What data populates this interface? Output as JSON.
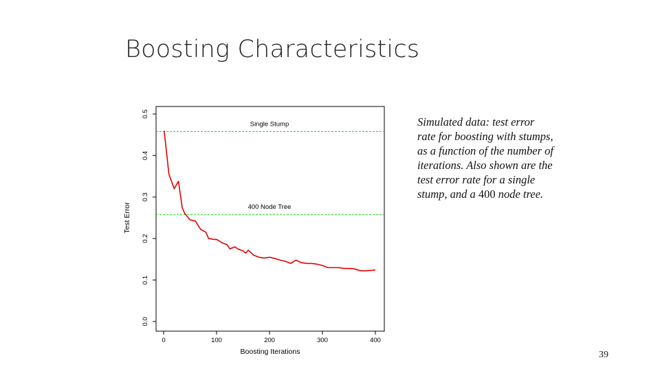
{
  "slide": {
    "title": "Boosting Characteristics",
    "page_number": "39"
  },
  "caption": {
    "part1": "Simulated data: test error rate for boosting with stumps,  as a function of the number of iterations. Also shown are the test error rate for a single stump, and a ",
    "number": "400",
    "part2": " node tree."
  },
  "chart_data": {
    "type": "line",
    "xlabel": "Boosting Iterations",
    "ylabel": "Test Error",
    "xlim": [
      0,
      400
    ],
    "ylim": [
      0.0,
      0.5
    ],
    "xticks": [
      "0",
      "100",
      "200",
      "300",
      "400"
    ],
    "yticks": [
      "0.0",
      "0.1",
      "0.2",
      "0.3",
      "0.4",
      "0.5"
    ],
    "grid": false,
    "series": [
      {
        "color": "#e00000",
        "x": [
          1,
          10,
          20,
          28,
          35,
          40,
          50,
          60,
          70,
          80,
          85,
          95,
          100,
          110,
          120,
          125,
          135,
          140,
          150,
          155,
          160,
          170,
          180,
          190,
          200,
          210,
          220,
          230,
          240,
          250,
          260,
          270,
          280,
          290,
          300,
          310,
          320,
          330,
          340,
          350,
          360,
          370,
          380,
          390,
          400
        ],
        "y": [
          0.46,
          0.355,
          0.32,
          0.338,
          0.275,
          0.26,
          0.245,
          0.242,
          0.222,
          0.215,
          0.2,
          0.198,
          0.198,
          0.19,
          0.185,
          0.175,
          0.18,
          0.175,
          0.17,
          0.165,
          0.172,
          0.16,
          0.155,
          0.153,
          0.155,
          0.152,
          0.148,
          0.145,
          0.14,
          0.148,
          0.142,
          0.14,
          0.14,
          0.138,
          0.135,
          0.13,
          0.13,
          0.13,
          0.128,
          0.128,
          0.127,
          0.123,
          0.122,
          0.123,
          0.124
        ]
      }
    ],
    "reference_lines": [
      {
        "label": "Single Stump",
        "y": 0.458,
        "color": "#00dd00"
      },
      {
        "label": "400 Node Tree",
        "y": 0.258,
        "color": "#00dd00"
      }
    ]
  }
}
